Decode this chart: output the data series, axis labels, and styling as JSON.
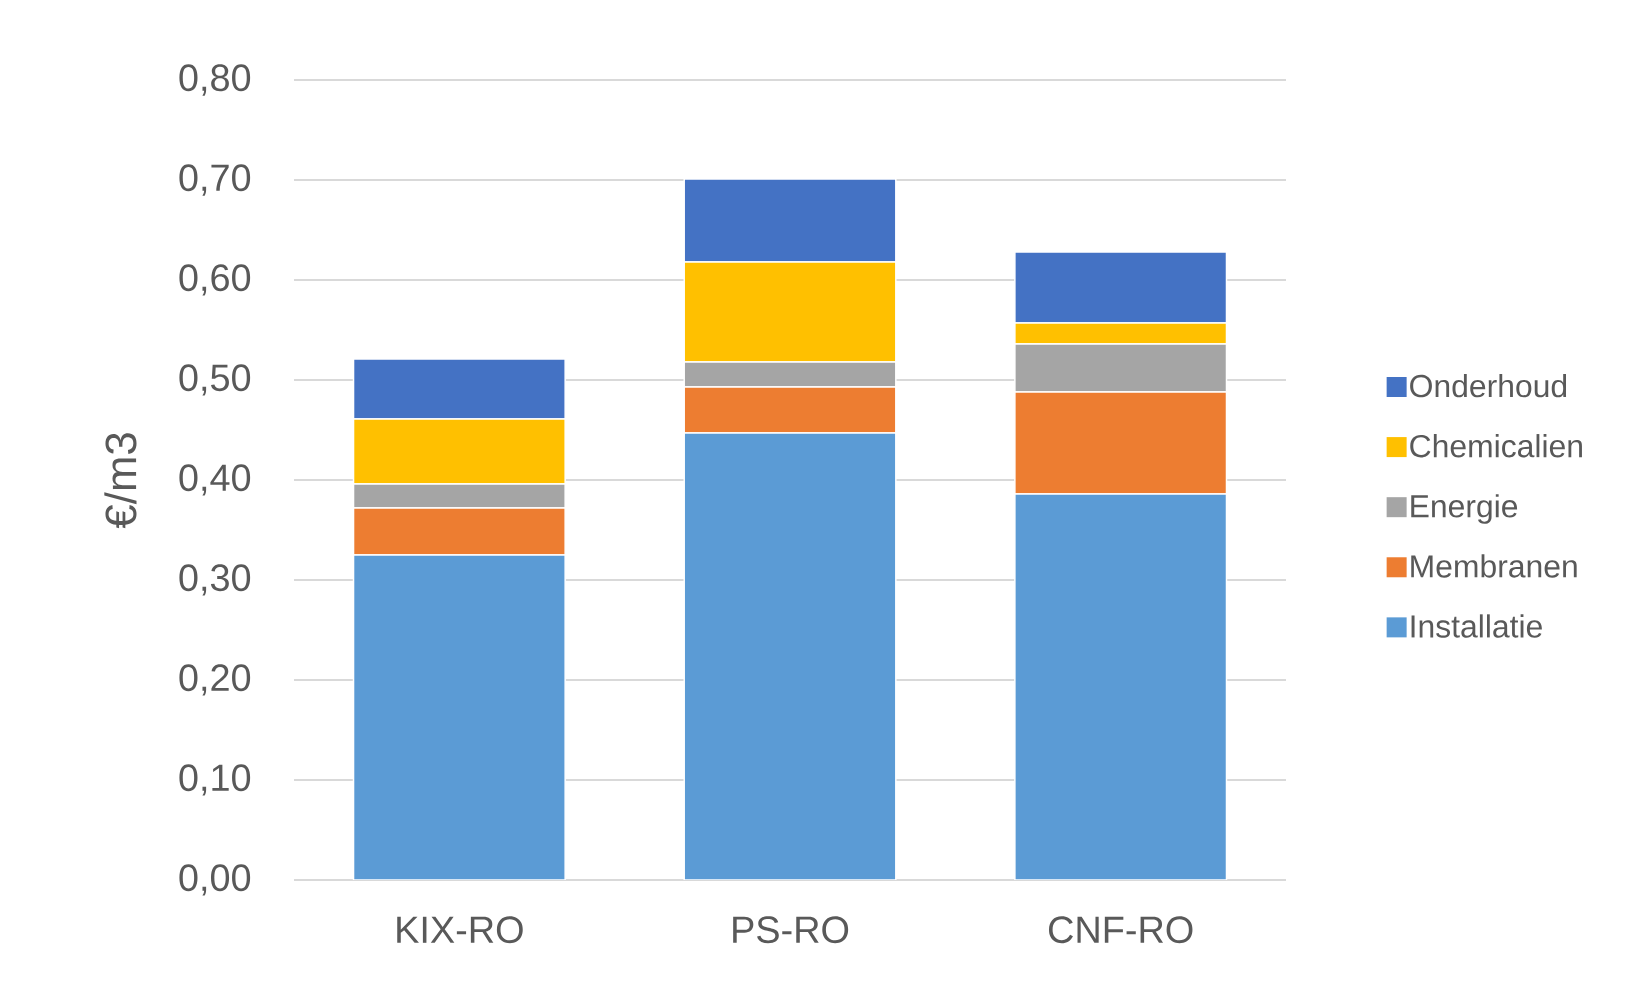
{
  "chart_data": {
    "type": "bar",
    "stacked": true,
    "ylabel": "€/m3",
    "categories": [
      "KIX-RO",
      "PS-RO",
      "CNF-RO"
    ],
    "series": [
      {
        "name": "Installatie",
        "color": "#5b9bd5",
        "values": [
          0.325,
          0.447,
          0.386
        ]
      },
      {
        "name": "Membranen",
        "color": "#ed7d31",
        "values": [
          0.047,
          0.046,
          0.102
        ]
      },
      {
        "name": "Energie",
        "color": "#a5a5a5",
        "values": [
          0.024,
          0.025,
          0.048
        ]
      },
      {
        "name": "Chemicalien",
        "color": "#ffc000",
        "values": [
          0.065,
          0.1,
          0.021
        ]
      },
      {
        "name": "Onderhoud",
        "color": "#4472c4",
        "values": [
          0.06,
          0.083,
          0.071
        ]
      }
    ],
    "ylim": [
      0,
      0.8
    ],
    "yticks": [
      {
        "value": 0,
        "label": "0,00"
      },
      {
        "value": 0.1,
        "label": "0,10"
      },
      {
        "value": 0.2,
        "label": "0,20"
      },
      {
        "value": 0.3,
        "label": "0,30"
      },
      {
        "value": 0.4,
        "label": "0,40"
      },
      {
        "value": 0.5,
        "label": "0,50"
      },
      {
        "value": 0.6,
        "label": "0,60"
      },
      {
        "value": 0.7,
        "label": "0,70"
      },
      {
        "value": 0.8,
        "label": "0,80"
      }
    ],
    "grid": "y",
    "legend": "right"
  }
}
